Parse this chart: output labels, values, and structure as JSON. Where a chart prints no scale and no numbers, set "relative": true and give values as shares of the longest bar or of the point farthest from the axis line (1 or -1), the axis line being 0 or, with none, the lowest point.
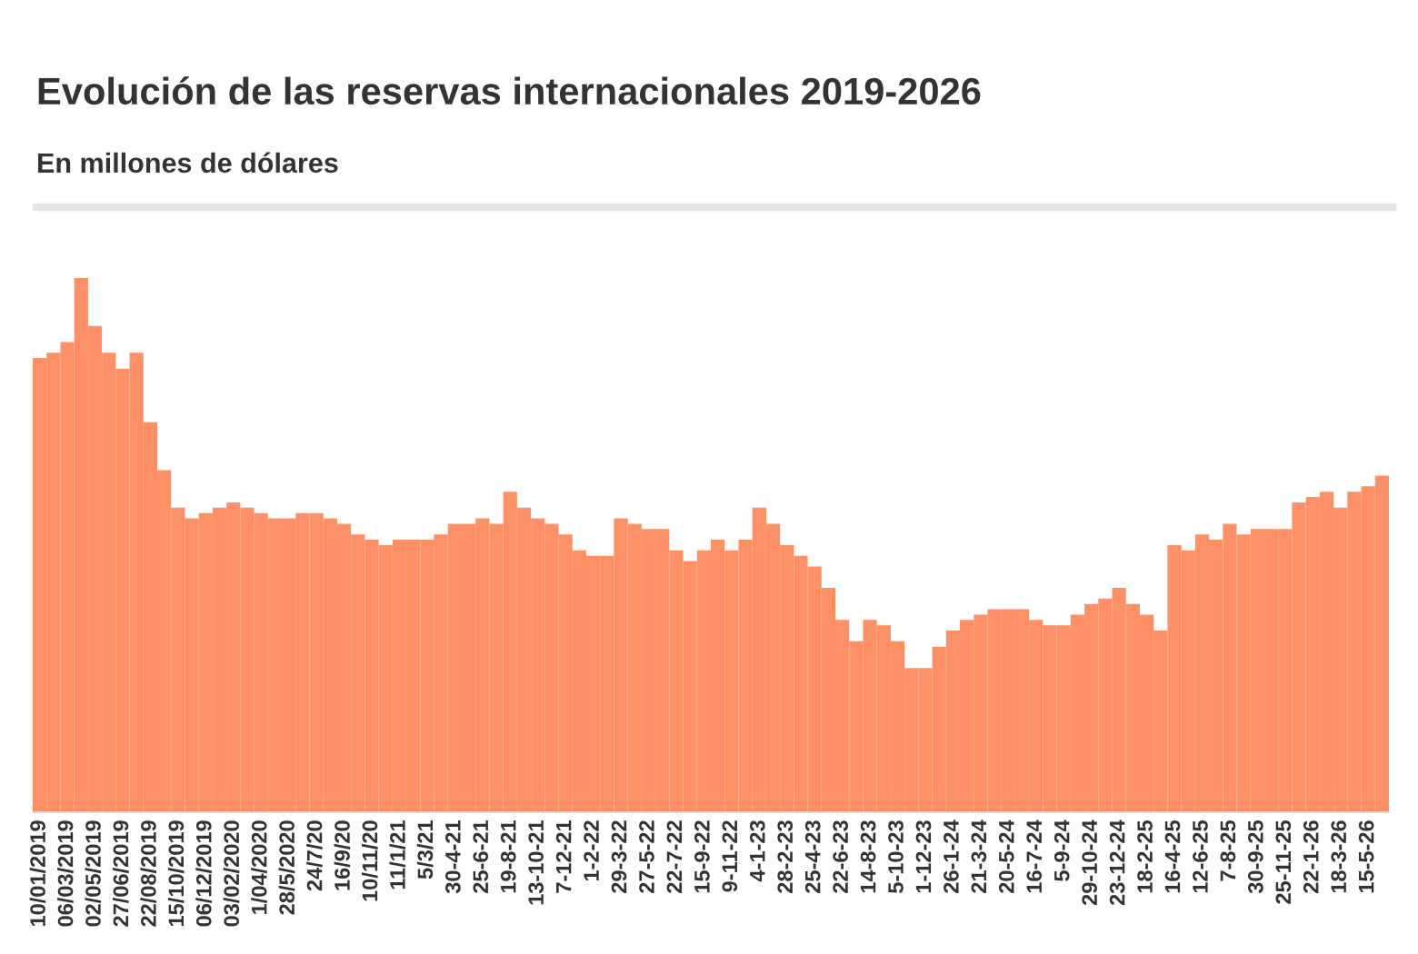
{
  "chart_data": {
    "type": "bar",
    "title": "Evolución de las reservas internacionales 2019-2026",
    "subtitle": "En millones de dólares",
    "relative": true,
    "color": "#fd9066",
    "categories": [
      "10/01/2019",
      null,
      "06/03/2019",
      null,
      "02/05/2019",
      null,
      "27/06/2019",
      null,
      "22/08/2019",
      null,
      "15/10/2019",
      null,
      "06/12/2019",
      null,
      "03/02/2020",
      null,
      "1/04/2020",
      null,
      "28/5/2020",
      null,
      "24/7/20",
      null,
      "16/9/20",
      null,
      "10/11/20",
      null,
      "11/1/21",
      null,
      "5/3/21",
      null,
      "30-4-21",
      null,
      "25-6-21",
      null,
      "19-8-21",
      null,
      "13-10-21",
      null,
      "7-12-21",
      null,
      "1-2-22",
      null,
      "29-3-22",
      null,
      "27-5-22",
      null,
      "22-7-22",
      null,
      "15-9-22",
      null,
      "9-11-22",
      null,
      "4-1-23",
      null,
      "28-2-23",
      null,
      "25-4-23",
      null,
      "22-6-23",
      null,
      "14-8-23",
      null,
      "5-10-23",
      null,
      "1-12-23",
      null,
      "26-1-24",
      null,
      "21-3-24",
      null,
      "20-5-24",
      null,
      "16-7-24",
      null,
      "5-9-24",
      null,
      "29-10-24",
      null,
      "23-12-24",
      null,
      "18-2-25",
      null,
      "16-4-25",
      null,
      "12-6-25",
      null,
      "7-8-25",
      null,
      "30-9-25",
      null,
      "25-11-25",
      null,
      "22-1-26",
      null,
      "18-3-26",
      null,
      "15-5-26",
      null
    ],
    "values": [
      0.85,
      0.86,
      0.88,
      1.0,
      0.91,
      0.86,
      0.83,
      0.86,
      0.73,
      0.64,
      0.57,
      0.55,
      0.56,
      0.57,
      0.58,
      0.57,
      0.56,
      0.55,
      0.55,
      0.56,
      0.56,
      0.55,
      0.54,
      0.52,
      0.51,
      0.5,
      0.51,
      0.51,
      0.51,
      0.52,
      0.54,
      0.54,
      0.55,
      0.54,
      0.6,
      0.57,
      0.55,
      0.54,
      0.52,
      0.49,
      0.48,
      0.48,
      0.55,
      0.54,
      0.53,
      0.53,
      0.49,
      0.47,
      0.49,
      0.51,
      0.49,
      0.51,
      0.57,
      0.54,
      0.5,
      0.48,
      0.46,
      0.42,
      0.36,
      0.32,
      0.36,
      0.35,
      0.32,
      0.27,
      0.27,
      0.31,
      0.34,
      0.36,
      0.37,
      0.38,
      0.38,
      0.38,
      0.36,
      0.35,
      0.35,
      0.37,
      0.39,
      0.4,
      0.42,
      0.39,
      0.37,
      0.34,
      0.5,
      0.49,
      0.52,
      0.51,
      0.54,
      0.52,
      0.53,
      0.53,
      0.53,
      0.58,
      0.59,
      0.6,
      0.57,
      0.6,
      0.61,
      0.63
    ],
    "grid": false,
    "legend": false
  }
}
